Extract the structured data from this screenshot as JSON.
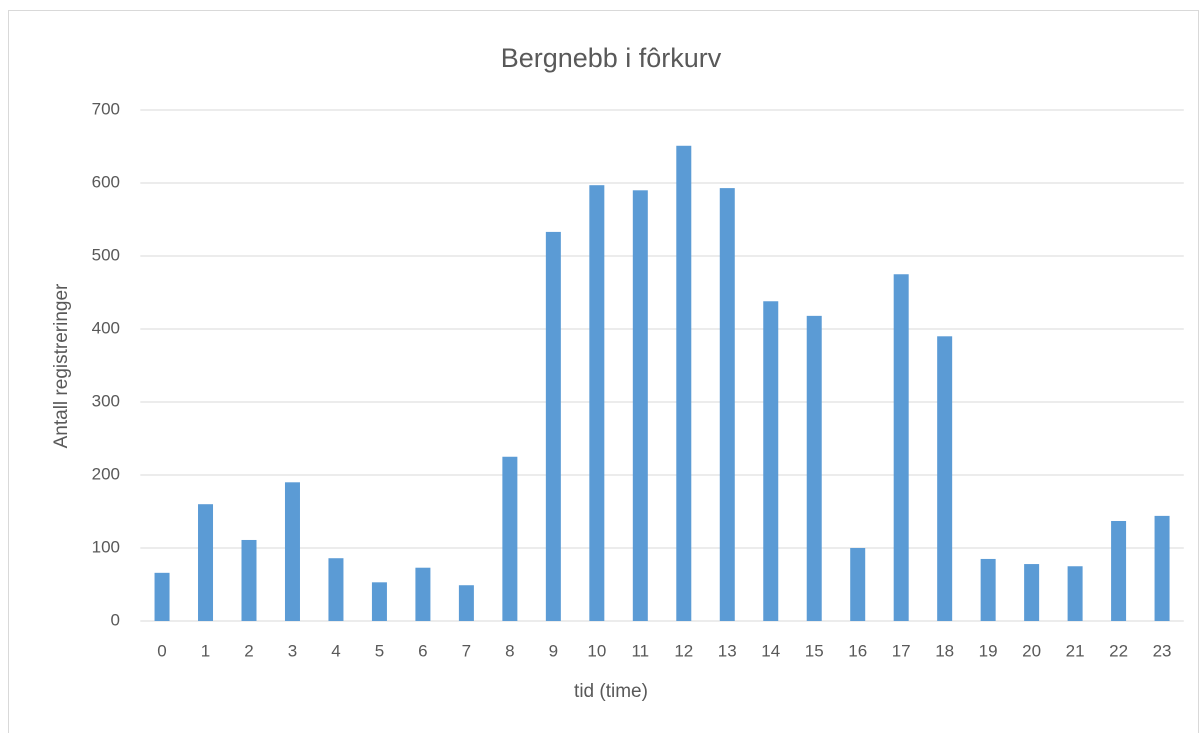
{
  "chart_data": {
    "type": "bar",
    "title": "Bergnebb i fôrkurv",
    "x_label": "tid (time)",
    "y_label": "Antall registreringer",
    "categories": [
      "0",
      "1",
      "2",
      "3",
      "4",
      "5",
      "6",
      "7",
      "8",
      "9",
      "10",
      "11",
      "12",
      "13",
      "14",
      "15",
      "16",
      "17",
      "18",
      "19",
      "20",
      "21",
      "22",
      "23"
    ],
    "values": [
      66,
      160,
      111,
      190,
      86,
      53,
      73,
      49,
      225,
      533,
      597,
      590,
      651,
      593,
      438,
      418,
      100,
      475,
      390,
      85,
      78,
      75,
      137,
      144
    ],
    "color": "#5b9bd5",
    "ylim": [
      0,
      700
    ],
    "yticks": [
      0,
      100,
      200,
      300,
      400,
      500,
      600,
      700
    ],
    "grid": true
  }
}
